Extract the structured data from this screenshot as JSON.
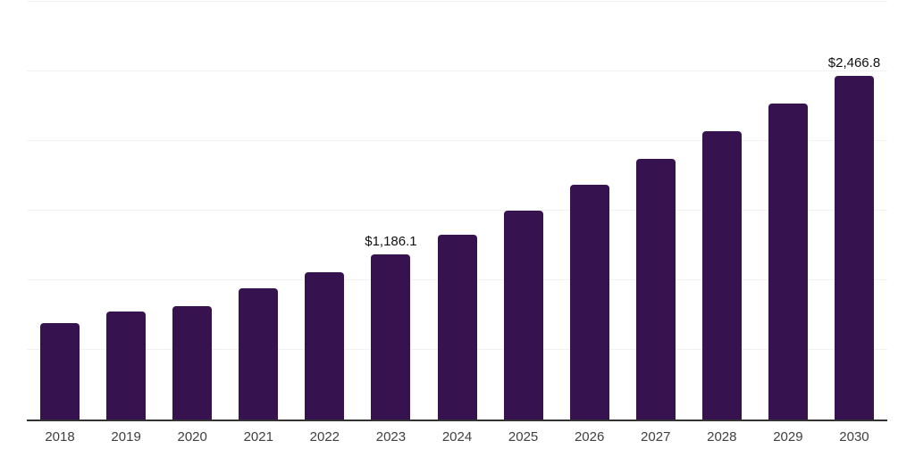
{
  "chart_data": {
    "type": "bar",
    "title": "",
    "categories": [
      "2018",
      "2019",
      "2020",
      "2021",
      "2022",
      "2023",
      "2024",
      "2025",
      "2026",
      "2027",
      "2028",
      "2029",
      "2030"
    ],
    "values": [
      695,
      775,
      815,
      945,
      1060,
      1186.1,
      1330,
      1500,
      1685,
      1870,
      2070,
      2270,
      2466.8
    ],
    "bar_labels": [
      "",
      "",
      "",
      "",
      "",
      "$1,186.1",
      "",
      "",
      "",
      "",
      "",
      "",
      "$2,466.8"
    ],
    "xlabel": "",
    "ylabel": "",
    "ylim": [
      0,
      3000
    ],
    "gridline_step": 500,
    "grid": true,
    "legend_position": "none",
    "colors": {
      "bar": "#36124E",
      "axis_line": "#333333",
      "gridline": "#f2f2f2",
      "value_label": "#111111",
      "tick_label": "#404040",
      "background": "#ffffff"
    }
  }
}
